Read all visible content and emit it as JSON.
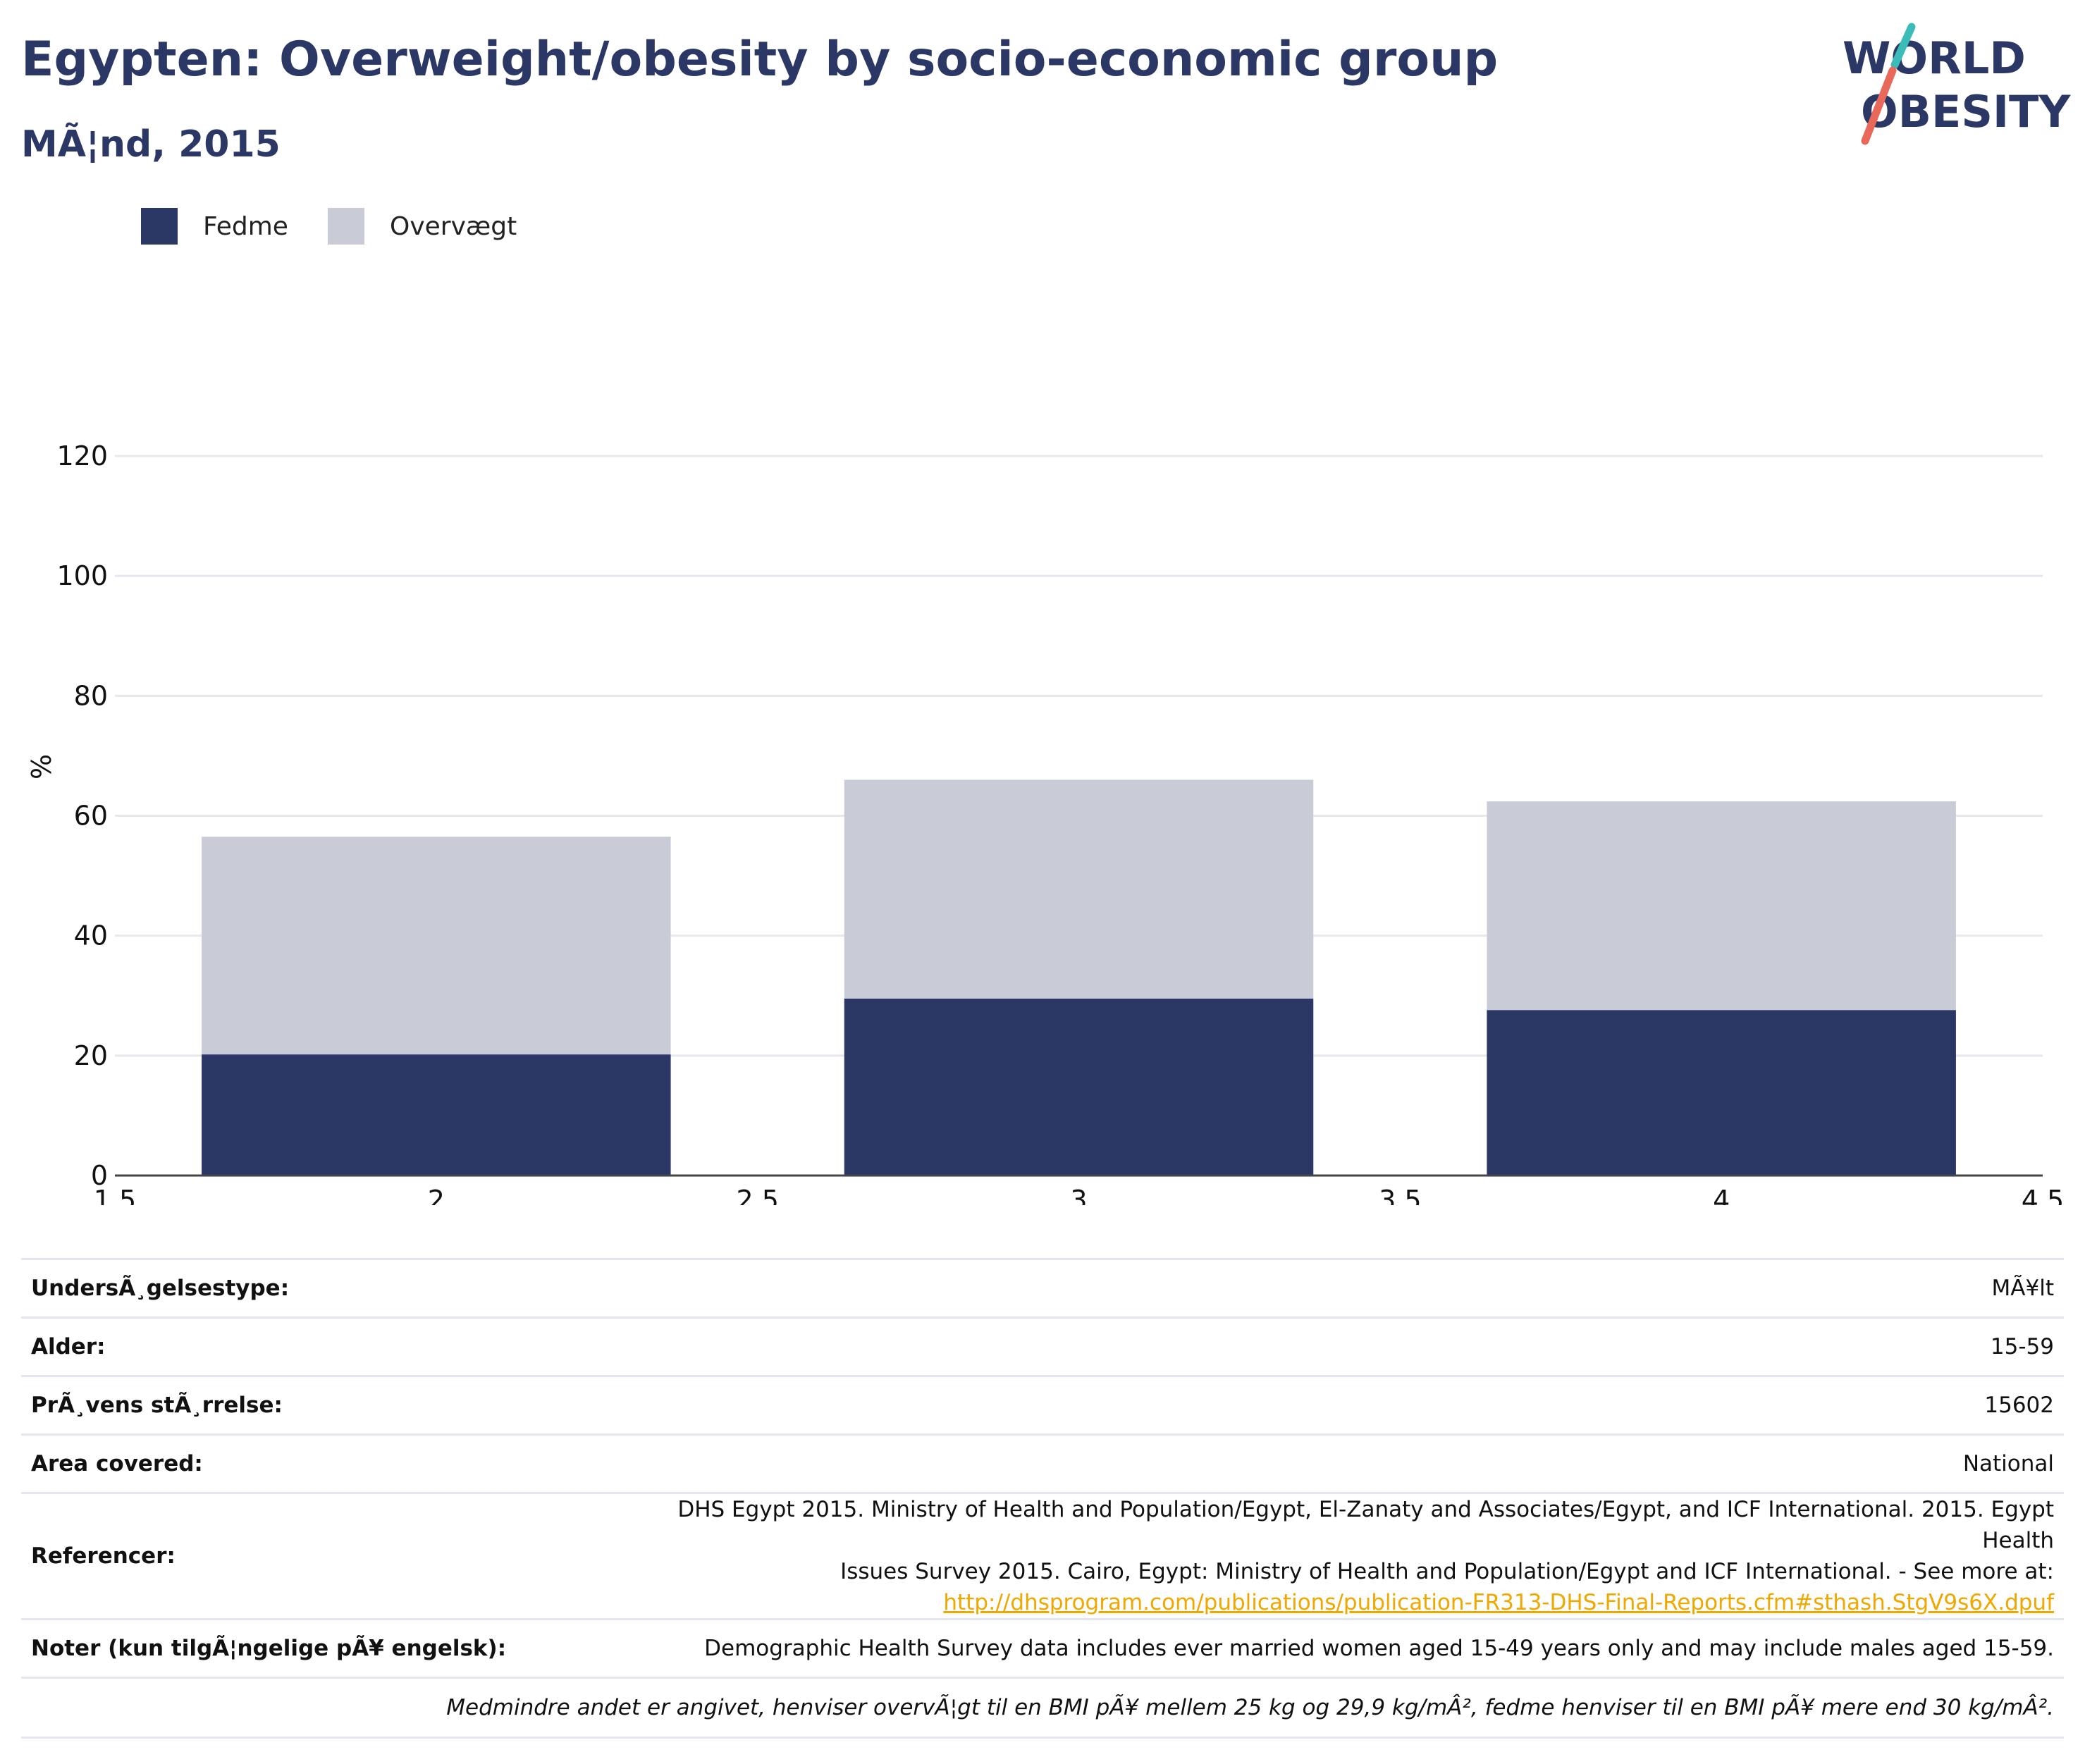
{
  "header": {
    "title": "Egypten: Overweight/obesity by socio-economic group",
    "subtitle": "MÃ¦nd, 2015"
  },
  "logo": {
    "line1": "WORLD",
    "line2": "OBESITY"
  },
  "colors": {
    "title": "#2b3866",
    "fedme": "#2b3866",
    "overvaegt": "#c9ccd7",
    "link": "#f0a800",
    "logo_teal": "#3bbcb8",
    "logo_coral": "#e8685a"
  },
  "legend": [
    {
      "label": "Fedme",
      "color": "#2b3866"
    },
    {
      "label": "Overvægt",
      "color": "#c9ccd7"
    }
  ],
  "chart_data": {
    "type": "bar",
    "stacked": true,
    "x": [
      2,
      3,
      4
    ],
    "series": [
      {
        "name": "Fedme",
        "values": [
          20.2,
          29.5,
          27.6
        ],
        "color": "#2b3866"
      },
      {
        "name": "Overvægt",
        "values": [
          36.3,
          36.5,
          34.8
        ],
        "color": "#c9ccd7"
      }
    ],
    "title": "Egypten: Overweight/obesity by socio-economic group",
    "subtitle": "MÃ¦nd, 2015",
    "ylabel": "%",
    "xlim": [
      1.5,
      4.5
    ],
    "ylim": [
      0,
      120
    ],
    "xticks": [
      1.5,
      2,
      2.5,
      3,
      3.5,
      4,
      4.5
    ],
    "xtick_labels": [
      "1.5",
      "2",
      "2.5",
      "3",
      "3.5",
      "4",
      "4.5"
    ],
    "yticks": [
      0,
      20,
      40,
      60,
      80,
      100,
      120
    ],
    "ytick_labels": [
      "0",
      "20",
      "40",
      "60",
      "80",
      "100",
      "120"
    ],
    "bar_width": 0.73,
    "grid": true,
    "legend_position": "top-left"
  },
  "info": {
    "rows": [
      {
        "label": "UndersÃ¸gelsestype:",
        "value": "MÃ¥lt"
      },
      {
        "label": "Alder:",
        "value": "15-59"
      },
      {
        "label": "PrÃ¸vens stÃ¸rrelse:",
        "value": "15602"
      },
      {
        "label": "Area covered:",
        "value": "National"
      }
    ],
    "references": {
      "label": "Referencer:",
      "line1": "DHS Egypt 2015. Ministry of Health and Population/Egypt, El-Zanaty and Associates/Egypt, and ICF International. 2015. Egypt Health",
      "line2": "Issues Survey 2015. Cairo, Egypt: Ministry of Health and Population/Egypt and ICF International. - See more at:",
      "link": "http://dhsprogram.com/publications/publication-FR313-DHS-Final-Reports.cfm#sthash.StgV9s6X.dpuf"
    },
    "notes": {
      "label": "Noter (kun tilgÃ¦ngelige pÃ¥ engelsk):",
      "value": "Demographic Health Survey data includes ever married women aged 15-49 years only and may include males aged 15-59."
    },
    "footnote": "Medmindre andet er angivet, henviser overvÃ¦gt til en BMI pÃ¥ mellem 25 kg og 29,9 kg/mÂ², fedme henviser til en BMI pÃ¥ mere end 30 kg/mÂ²."
  }
}
